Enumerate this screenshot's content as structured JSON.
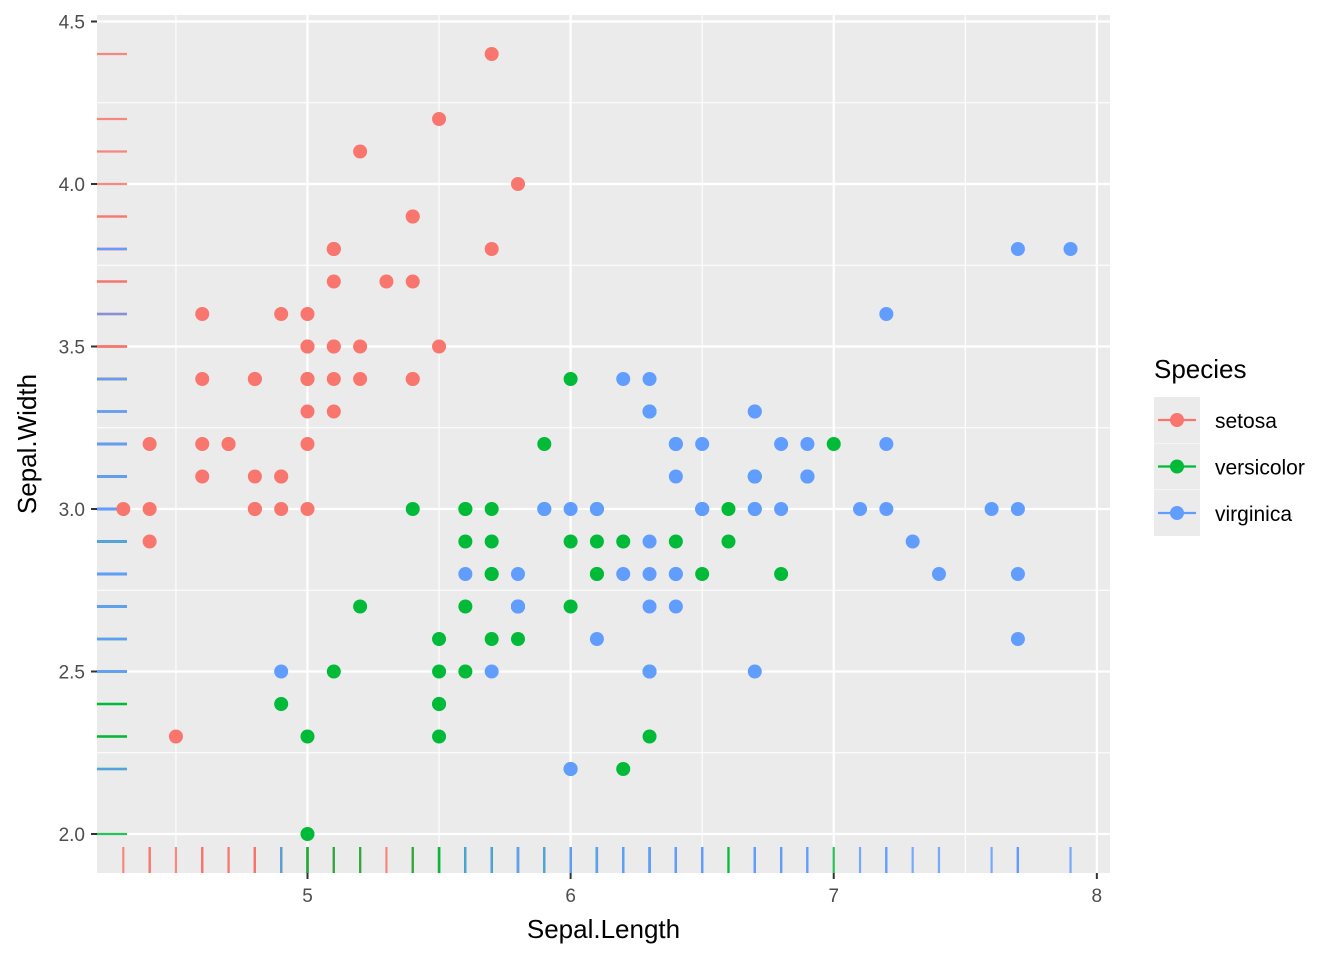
{
  "chart_data": {
    "type": "scatter",
    "title": "",
    "xlabel": "Sepal.Length",
    "ylabel": "Sepal.Width",
    "xlim": [
      4.2,
      8.05
    ],
    "ylim": [
      1.88,
      4.52
    ],
    "x_ticks": [
      5,
      6,
      7,
      8
    ],
    "x_tick_labels": [
      "5",
      "6",
      "7",
      "8"
    ],
    "y_ticks": [
      2.0,
      2.5,
      3.0,
      3.5,
      4.0,
      4.5
    ],
    "y_tick_labels": [
      "2.0",
      "2.5",
      "3.0",
      "3.5",
      "4.0",
      "4.5"
    ],
    "grid": true,
    "rug": true,
    "legend": {
      "title": "Species",
      "position": "right"
    },
    "background": "#ebebeb",
    "series": [
      {
        "name": "setosa",
        "color": "#F8766D",
        "points": [
          [
            5.1,
            3.5
          ],
          [
            4.9,
            3.0
          ],
          [
            4.7,
            3.2
          ],
          [
            4.6,
            3.1
          ],
          [
            5.0,
            3.6
          ],
          [
            5.4,
            3.9
          ],
          [
            4.6,
            3.4
          ],
          [
            5.0,
            3.4
          ],
          [
            4.4,
            2.9
          ],
          [
            4.9,
            3.1
          ],
          [
            5.4,
            3.7
          ],
          [
            4.8,
            3.4
          ],
          [
            4.8,
            3.0
          ],
          [
            4.3,
            3.0
          ],
          [
            5.8,
            4.0
          ],
          [
            5.7,
            4.4
          ],
          [
            5.4,
            3.9
          ],
          [
            5.1,
            3.5
          ],
          [
            5.7,
            3.8
          ],
          [
            5.1,
            3.8
          ],
          [
            5.4,
            3.4
          ],
          [
            5.1,
            3.7
          ],
          [
            4.6,
            3.6
          ],
          [
            5.1,
            3.3
          ],
          [
            4.8,
            3.4
          ],
          [
            5.0,
            3.0
          ],
          [
            5.0,
            3.4
          ],
          [
            5.2,
            3.5
          ],
          [
            5.2,
            3.4
          ],
          [
            4.7,
            3.2
          ],
          [
            4.8,
            3.1
          ],
          [
            5.4,
            3.4
          ],
          [
            5.2,
            4.1
          ],
          [
            5.5,
            4.2
          ],
          [
            4.9,
            3.1
          ],
          [
            5.0,
            3.2
          ],
          [
            5.5,
            3.5
          ],
          [
            4.9,
            3.6
          ],
          [
            4.4,
            3.0
          ],
          [
            5.1,
            3.4
          ],
          [
            5.0,
            3.5
          ],
          [
            4.5,
            2.3
          ],
          [
            4.4,
            3.2
          ],
          [
            5.0,
            3.5
          ],
          [
            5.1,
            3.8
          ],
          [
            4.8,
            3.0
          ],
          [
            5.1,
            3.8
          ],
          [
            4.6,
            3.2
          ],
          [
            5.3,
            3.7
          ],
          [
            5.0,
            3.3
          ]
        ]
      },
      {
        "name": "versicolor",
        "color": "#00BA38",
        "points": [
          [
            7.0,
            3.2
          ],
          [
            6.4,
            3.2
          ],
          [
            6.9,
            3.1
          ],
          [
            5.5,
            2.3
          ],
          [
            6.5,
            2.8
          ],
          [
            5.7,
            2.8
          ],
          [
            6.3,
            3.3
          ],
          [
            4.9,
            2.4
          ],
          [
            6.6,
            2.9
          ],
          [
            5.2,
            2.7
          ],
          [
            5.0,
            2.0
          ],
          [
            5.9,
            3.0
          ],
          [
            6.0,
            2.2
          ],
          [
            6.1,
            2.9
          ],
          [
            5.6,
            2.9
          ],
          [
            6.7,
            3.1
          ],
          [
            5.6,
            3.0
          ],
          [
            5.8,
            2.7
          ],
          [
            6.2,
            2.2
          ],
          [
            5.6,
            2.5
          ],
          [
            5.9,
            3.2
          ],
          [
            6.1,
            2.8
          ],
          [
            6.3,
            2.5
          ],
          [
            6.1,
            2.8
          ],
          [
            6.4,
            2.9
          ],
          [
            6.6,
            3.0
          ],
          [
            6.8,
            2.8
          ],
          [
            6.7,
            3.0
          ],
          [
            6.0,
            2.9
          ],
          [
            5.7,
            2.6
          ],
          [
            5.5,
            2.4
          ],
          [
            5.5,
            2.4
          ],
          [
            5.8,
            2.7
          ],
          [
            6.0,
            2.7
          ],
          [
            5.4,
            3.0
          ],
          [
            6.0,
            3.4
          ],
          [
            6.7,
            3.1
          ],
          [
            6.3,
            2.3
          ],
          [
            5.6,
            3.0
          ],
          [
            5.5,
            2.5
          ],
          [
            5.5,
            2.6
          ],
          [
            6.1,
            3.0
          ],
          [
            5.8,
            2.6
          ],
          [
            5.0,
            2.3
          ],
          [
            5.6,
            2.7
          ],
          [
            5.7,
            3.0
          ],
          [
            5.7,
            2.9
          ],
          [
            6.2,
            2.9
          ],
          [
            5.1,
            2.5
          ],
          [
            5.7,
            2.8
          ]
        ]
      },
      {
        "name": "virginica",
        "color": "#619CFF",
        "points": [
          [
            6.3,
            3.3
          ],
          [
            5.8,
            2.7
          ],
          [
            7.1,
            3.0
          ],
          [
            6.3,
            2.9
          ],
          [
            6.5,
            3.0
          ],
          [
            7.6,
            3.0
          ],
          [
            4.9,
            2.5
          ],
          [
            7.3,
            2.9
          ],
          [
            6.7,
            2.5
          ],
          [
            7.2,
            3.6
          ],
          [
            6.5,
            3.2
          ],
          [
            6.4,
            2.7
          ],
          [
            6.8,
            3.0
          ],
          [
            5.7,
            2.5
          ],
          [
            5.8,
            2.8
          ],
          [
            6.4,
            3.2
          ],
          [
            6.5,
            3.0
          ],
          [
            7.7,
            3.8
          ],
          [
            7.7,
            2.6
          ],
          [
            6.0,
            2.2
          ],
          [
            6.9,
            3.2
          ],
          [
            5.6,
            2.8
          ],
          [
            7.7,
            2.8
          ],
          [
            6.3,
            2.7
          ],
          [
            6.7,
            3.3
          ],
          [
            7.2,
            3.2
          ],
          [
            6.2,
            2.8
          ],
          [
            6.1,
            3.0
          ],
          [
            6.4,
            2.8
          ],
          [
            7.2,
            3.0
          ],
          [
            7.4,
            2.8
          ],
          [
            7.9,
            3.8
          ],
          [
            6.4,
            2.8
          ],
          [
            6.3,
            2.8
          ],
          [
            6.1,
            2.6
          ],
          [
            7.7,
            3.0
          ],
          [
            6.3,
            3.4
          ],
          [
            6.4,
            3.1
          ],
          [
            6.0,
            3.0
          ],
          [
            6.9,
            3.1
          ],
          [
            6.7,
            3.1
          ],
          [
            6.9,
            3.1
          ],
          [
            5.8,
            2.7
          ],
          [
            6.8,
            3.2
          ],
          [
            6.7,
            3.3
          ],
          [
            6.7,
            3.0
          ],
          [
            6.3,
            2.5
          ],
          [
            6.5,
            3.0
          ],
          [
            6.2,
            3.4
          ],
          [
            5.9,
            3.0
          ]
        ]
      }
    ]
  }
}
